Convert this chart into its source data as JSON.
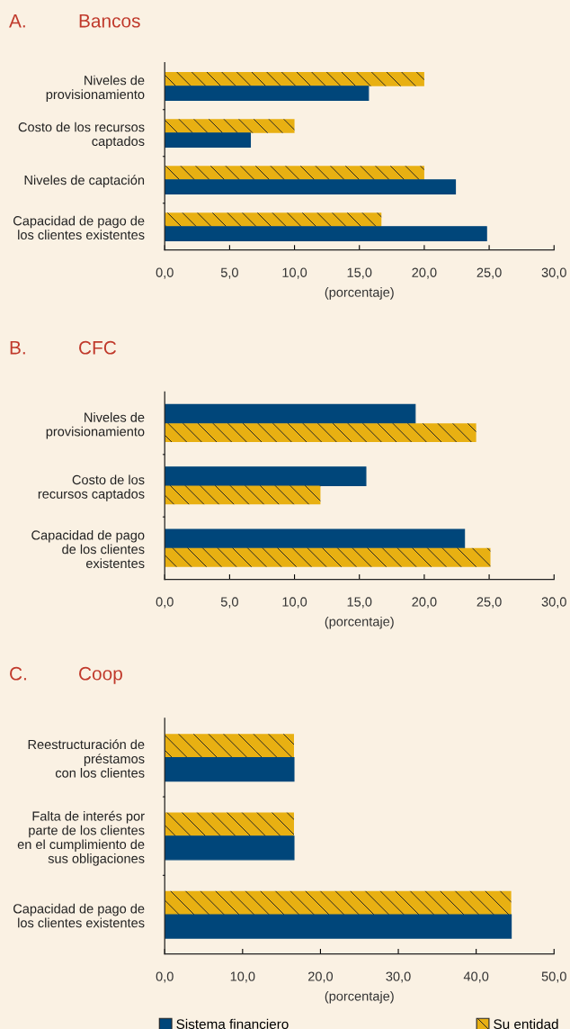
{
  "chart_data": [
    {
      "type": "bar",
      "orientation": "horizontal",
      "title": "A. Bancos",
      "xlabel": "(porcentaje)",
      "legend": "bottom",
      "categories": [
        "Niveles de\nprovisionamiento",
        "Costo de los recursos\ncaptados",
        "Niveles de captación",
        "Capacidad de pago de\nlos clientes existentes"
      ],
      "series": [
        {
          "name": "Su entidad",
          "color": "#e8b012",
          "values": [
            20.0,
            10.0,
            20.0,
            16.7
          ]
        },
        {
          "name": "Sistema financiero",
          "color": "#00467a",
          "values": [
            15.7,
            6.6,
            22.4,
            24.8
          ]
        }
      ],
      "xlim": [
        0,
        30
      ],
      "xticks": [
        {
          "value": 0,
          "label": "0,0"
        },
        {
          "value": 5,
          "label": "5,0"
        },
        {
          "value": 10,
          "label": "10,0"
        },
        {
          "value": 15,
          "label": "15,0"
        },
        {
          "value": 20,
          "label": "20,0"
        },
        {
          "value": 25,
          "label": "25,0"
        },
        {
          "value": 30,
          "label": "30,0"
        }
      ]
    },
    {
      "type": "bar",
      "orientation": "horizontal",
      "title": "B. CFC",
      "xlabel": "(porcentaje)",
      "legend": "bottom",
      "categories": [
        "Niveles de\nprovisionamiento",
        "Costo de los\nrecursos captados",
        "Capacidad de pago\nde los clientes\nexistentes"
      ],
      "series": [
        {
          "name": "Sistema financiero",
          "color": "#00467a",
          "values": [
            19.3,
            15.5,
            23.1
          ]
        },
        {
          "name": "Su entidad",
          "color": "#e8b012",
          "values": [
            24.0,
            12.0,
            25.1
          ]
        }
      ],
      "xlim": [
        0,
        30
      ],
      "xticks": [
        {
          "value": 0,
          "label": "0,0"
        },
        {
          "value": 5,
          "label": "5,0"
        },
        {
          "value": 10,
          "label": "10,0"
        },
        {
          "value": 15,
          "label": "15,0"
        },
        {
          "value": 20,
          "label": "20,0"
        },
        {
          "value": 25,
          "label": "25,0"
        },
        {
          "value": 30,
          "label": "30,0"
        }
      ]
    },
    {
      "type": "bar",
      "orientation": "horizontal",
      "title": "C. Coop",
      "xlabel": "(porcentaje)",
      "legend": "bottom",
      "categories": [
        "Reestructuración de\npréstamos\ncon los clientes",
        "Falta de interés por\nparte de los clientes\nen el cumplimiento de\nsus obligaciones",
        "Capacidad de pago de\nlos clientes existentes"
      ],
      "series": [
        {
          "name": "Su entidad",
          "color": "#e8b012",
          "values": [
            16.6,
            16.6,
            44.5
          ]
        },
        {
          "name": "Sistema financiero",
          "color": "#00467a",
          "values": [
            16.6,
            16.6,
            44.5
          ]
        }
      ],
      "xlim": [
        0,
        50
      ],
      "xticks": [
        {
          "value": 0,
          "label": "0,0"
        },
        {
          "value": 10,
          "label": "10,0"
        },
        {
          "value": 20,
          "label": "20,0"
        },
        {
          "value": 30,
          "label": "30,0"
        },
        {
          "value": 40,
          "label": "40,0"
        },
        {
          "value": 50,
          "label": "50,0"
        }
      ]
    }
  ]
}
